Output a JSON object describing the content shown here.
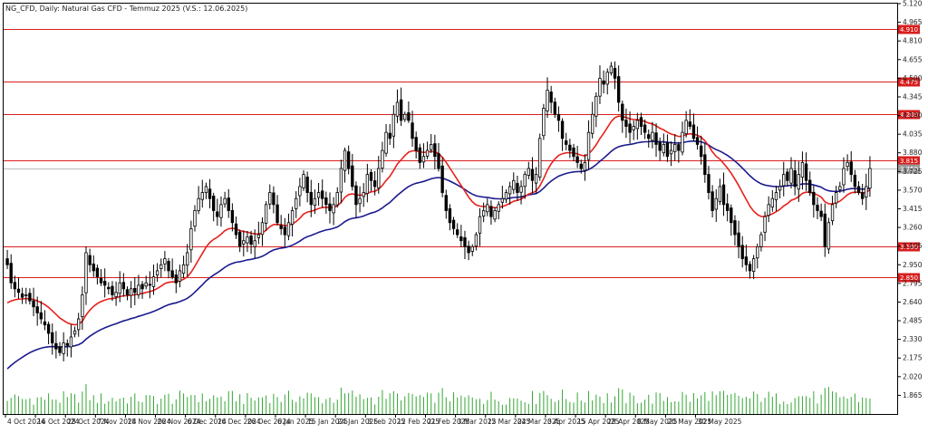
{
  "chart_data": {
    "type": "candlestick",
    "title": "NG_CFD, Daily: Natural Gas CFD - Temmuz 2025 (V.S.: 12.06.2025)",
    "xlabel": "",
    "ylabel": "",
    "ylim": [
      1.71,
      5.12
    ],
    "grid": false,
    "y_ticks": [
      "5.120",
      "4.965",
      "4.810",
      "4.655",
      "4.500",
      "4.345",
      "4.190",
      "4.035",
      "3.880",
      "3.725",
      "3.570",
      "3.415",
      "3.260",
      "3.105",
      "2.950",
      "2.795",
      "2.640",
      "2.485",
      "2.330",
      "2.175",
      "2.020",
      "1.865"
    ],
    "x_ticks": [
      "4 Oct 2024",
      "16 Oct 2024",
      "28 Oct 2024",
      "7 Nov 2024",
      "18 Nov 2024",
      "26 Nov 2024",
      "6 Dec 2024",
      "16 Dec 2024",
      "26 Dec 2024",
      "6 Jan 2025",
      "15 Jan 2025",
      "24 Jan 2025",
      "3 Feb 2025",
      "12 Feb 2025",
      "21 Feb 2025",
      "3 Mar 2025",
      "12 Mar 2025",
      "24 Mar 2025",
      "3 Apr 2025",
      "15 Apr 2025",
      "28 Apr 2025",
      "8 May 2025",
      "20 May 2025",
      "30 May 2025"
    ],
    "tick_every_bars": 8,
    "levels": [
      {
        "value": 4.91,
        "label": "4.910"
      },
      {
        "value": 4.475,
        "label": "4.475"
      },
      {
        "value": 4.2,
        "label": "4.200"
      },
      {
        "value": 3.815,
        "label": "3.815"
      },
      {
        "value": 3.1,
        "label": "3.100"
      },
      {
        "value": 2.85,
        "label": "2.850"
      }
    ],
    "current_price": {
      "value": 3.75,
      "label": "3.750"
    },
    "colors": {
      "bull": "#ffffff",
      "bear": "#000000",
      "wick": "#000000",
      "fast_ma": "#e8201c",
      "slow_ma": "#1c1a8e",
      "level": "#d81e1e",
      "volume": "#33a633",
      "current_price": "#bbbbbb"
    },
    "closes": [
      2.95,
      2.8,
      2.75,
      2.72,
      2.68,
      2.7,
      2.65,
      2.6,
      2.55,
      2.5,
      2.45,
      2.38,
      2.3,
      2.25,
      2.22,
      2.3,
      2.28,
      2.35,
      2.4,
      2.5,
      2.7,
      3.05,
      2.95,
      2.9,
      2.85,
      2.8,
      2.78,
      2.75,
      2.7,
      2.72,
      2.8,
      2.75,
      2.7,
      2.75,
      2.72,
      2.78,
      2.75,
      2.8,
      2.78,
      2.85,
      2.9,
      2.95,
      3.0,
      2.9,
      2.85,
      2.8,
      2.9,
      2.95,
      3.05,
      3.25,
      3.4,
      3.5,
      3.55,
      3.6,
      3.5,
      3.4,
      3.35,
      3.45,
      3.5,
      3.4,
      3.3,
      3.2,
      3.1,
      3.15,
      3.18,
      3.12,
      3.15,
      3.2,
      3.3,
      3.45,
      3.55,
      3.45,
      3.3,
      3.25,
      3.2,
      3.3,
      3.4,
      3.5,
      3.6,
      3.7,
      3.55,
      3.45,
      3.5,
      3.55,
      3.5,
      3.45,
      3.4,
      3.45,
      3.55,
      3.75,
      3.9,
      3.75,
      3.6,
      3.45,
      3.5,
      3.55,
      3.7,
      3.65,
      3.6,
      3.75,
      3.9,
      4.05,
      4.0,
      4.2,
      4.3,
      4.15,
      4.2,
      4.15,
      4.0,
      3.9,
      3.8,
      3.85,
      3.9,
      3.95,
      3.85,
      3.75,
      3.55,
      3.4,
      3.3,
      3.25,
      3.2,
      3.15,
      3.1,
      3.05,
      3.1,
      3.2,
      3.35,
      3.4,
      3.45,
      3.35,
      3.4,
      3.45,
      3.5,
      3.55,
      3.6,
      3.65,
      3.55,
      3.6,
      3.7,
      3.75,
      3.65,
      3.7,
      4.0,
      4.25,
      4.4,
      4.3,
      4.2,
      4.15,
      4.0,
      3.95,
      3.9,
      3.85,
      3.8,
      3.75,
      3.8,
      4.05,
      4.2,
      4.35,
      4.5,
      4.45,
      4.55,
      4.6,
      4.5,
      4.3,
      4.15,
      4.1,
      4.05,
      4.1,
      4.15,
      4.1,
      4.05,
      4.0,
      4.05,
      3.95,
      3.9,
      3.95,
      3.85,
      3.9,
      3.95,
      3.9,
      4.05,
      4.15,
      4.1,
      4.0,
      3.95,
      3.85,
      3.7,
      3.55,
      3.4,
      3.5,
      3.6,
      3.45,
      3.4,
      3.3,
      3.2,
      3.1,
      3.0,
      2.95,
      2.9,
      3.0,
      3.1,
      3.2,
      3.35,
      3.45,
      3.5,
      3.55,
      3.6,
      3.7,
      3.65,
      3.75,
      3.6,
      3.7,
      3.8,
      3.65,
      3.55,
      3.45,
      3.4,
      3.35,
      3.1,
      3.3,
      3.45,
      3.55,
      3.6,
      3.75,
      3.8,
      3.7,
      3.6,
      3.55,
      3.5,
      3.6,
      3.75
    ]
  }
}
